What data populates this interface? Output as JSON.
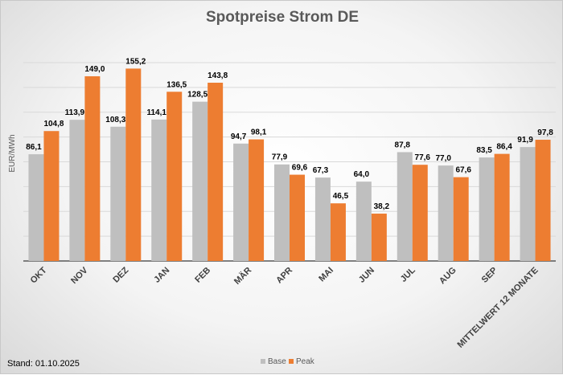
{
  "chart_data": {
    "type": "bar",
    "title": "Spotpreise Strom DE",
    "ylabel": "EUR/MWh",
    "xlabel": "",
    "ylim": [
      0,
      160
    ],
    "grid": true,
    "gridline_step": 20,
    "legend": "bottom",
    "categories": [
      "OKT",
      "NOV",
      "DEZ",
      "JAN",
      "FEB",
      "MÄR",
      "APR",
      "MAI",
      "JUN",
      "JUL",
      "AUG",
      "SEP",
      "MITTELWERT 12 MONATE"
    ],
    "series": [
      {
        "name": "Base",
        "color": "#bfbfbf",
        "values": [
          86.1,
          113.9,
          108.3,
          114.1,
          128.5,
          94.7,
          77.9,
          67.3,
          64.0,
          87.8,
          77.0,
          83.5,
          91.9
        ]
      },
      {
        "name": "Peak",
        "color": "#ed7d31",
        "values": [
          104.8,
          149.0,
          155.2,
          136.5,
          143.8,
          98.1,
          69.6,
          46.5,
          38.2,
          77.6,
          67.6,
          86.4,
          97.8
        ]
      }
    ]
  },
  "footer": {
    "stand": "Stand: 01.10.2025"
  }
}
